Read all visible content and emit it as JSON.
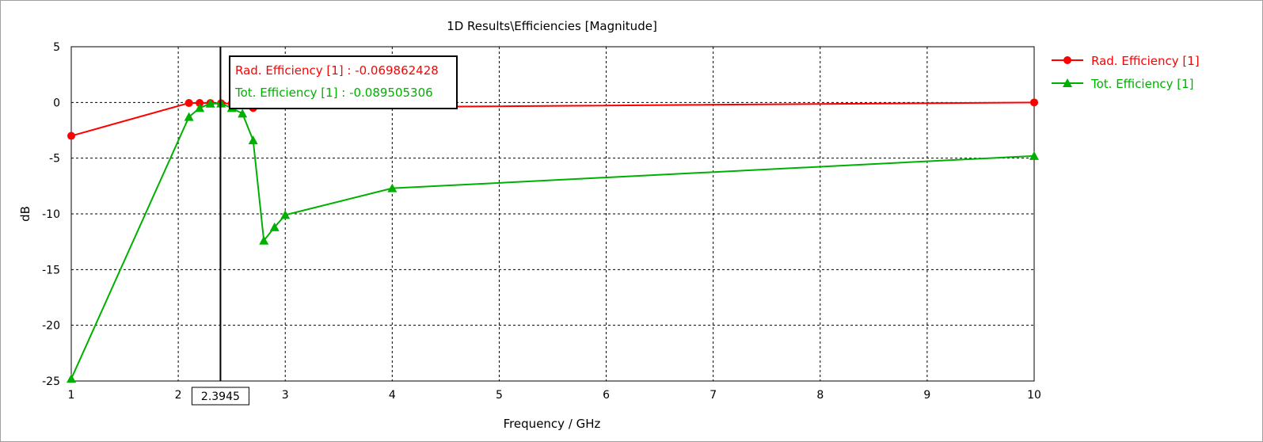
{
  "chart_data": {
    "type": "line",
    "title": "1D Results\\Efficiencies [Magnitude]",
    "xlabel": "Frequency / GHz",
    "ylabel": "dB",
    "xlim": [
      1,
      10
    ],
    "ylim": [
      -25,
      5
    ],
    "x_ticks": [
      "1",
      "2",
      "3",
      "4",
      "5",
      "6",
      "7",
      "8",
      "9",
      "10"
    ],
    "y_ticks": [
      "5",
      "0",
      "-5",
      "-10",
      "-15",
      "-20",
      "-25"
    ],
    "grid": true,
    "legend_position": "right",
    "series": [
      {
        "name": "Rad. Efficiency [1]",
        "color": "#ff0000",
        "marker": "circle",
        "x": [
          1,
          2.1,
          2.2,
          2.3,
          2.4,
          2.5,
          2.6,
          2.7,
          10
        ],
        "y": [
          -3.0,
          -0.05,
          -0.05,
          -0.06,
          -0.07,
          -0.1,
          -0.2,
          -0.5,
          0.0
        ]
      },
      {
        "name": "Tot. Efficiency [1]",
        "color": "#00b000",
        "marker": "triangle",
        "x": [
          1,
          2.1,
          2.2,
          2.3,
          2.4,
          2.5,
          2.6,
          2.7,
          2.8,
          2.9,
          3.0,
          4.0,
          10
        ],
        "y": [
          -24.8,
          -1.3,
          -0.5,
          -0.1,
          -0.09,
          -0.5,
          -1.0,
          -3.4,
          -12.4,
          -11.2,
          -10.1,
          -7.7,
          -4.8
        ]
      }
    ],
    "marker_x": 2.3945,
    "marker_label": "2.3945",
    "tooltip": [
      {
        "text": "Rad. Efficiency [1] : -0.069862428",
        "color": "#ff0000"
      },
      {
        "text": "Tot. Efficiency [1] : -0.089505306",
        "color": "#00b000"
      }
    ]
  }
}
